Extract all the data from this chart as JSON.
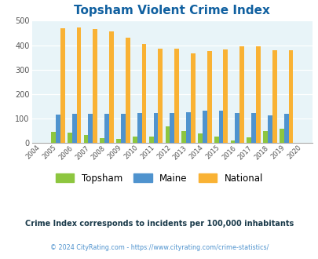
{
  "title": "Topsham Violent Crime Index",
  "years": [
    2004,
    2005,
    2006,
    2007,
    2008,
    2009,
    2010,
    2011,
    2012,
    2013,
    2014,
    2015,
    2016,
    2017,
    2018,
    2019,
    2020
  ],
  "topsham": [
    null,
    47,
    42,
    33,
    20,
    18,
    25,
    25,
    68,
    50,
    38,
    25,
    10,
    23,
    48,
    58,
    null
  ],
  "maine": [
    null,
    115,
    118,
    120,
    118,
    120,
    122,
    122,
    124,
    125,
    132,
    132,
    124,
    124,
    114,
    118,
    null
  ],
  "national": [
    null,
    470,
    474,
    467,
    455,
    432,
    405,
    387,
    387,
    367,
    376,
    383,
    397,
    394,
    381,
    379,
    null
  ],
  "topsham_color": "#8dc63f",
  "maine_color": "#4f93ce",
  "national_color": "#f9b234",
  "bg_color": "#e8f4f8",
  "title_color": "#1060a0",
  "ylabel_max": 500,
  "ylabel_min": 0,
  "ylabel_step": 100,
  "footnote1": "Crime Index corresponds to incidents per 100,000 inhabitants",
  "footnote2": "© 2024 CityRating.com - https://www.cityrating.com/crime-statistics/",
  "footnote2_color": "#4f93ce",
  "footnote1_color": "#1a3a4a",
  "bar_width": 0.28
}
